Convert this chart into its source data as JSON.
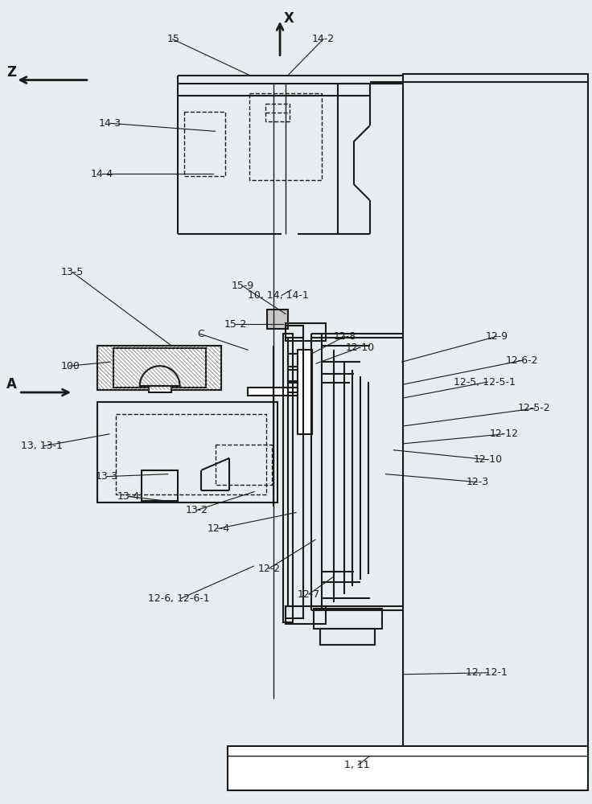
{
  "bg_color": "#e8eef0",
  "line_color": "#1a1a1a",
  "annotations": [
    [
      "15",
      207,
      47,
      310,
      92
    ],
    [
      "14-2",
      388,
      47,
      358,
      92
    ],
    [
      "14-3",
      122,
      152,
      267,
      162
    ],
    [
      "14-4",
      112,
      215,
      265,
      215
    ],
    [
      "13-5",
      75,
      338,
      213,
      430
    ],
    [
      "100",
      75,
      455,
      136,
      450
    ],
    [
      "C",
      245,
      415,
      308,
      435
    ],
    [
      "10, 14, 14-1",
      308,
      367,
      362,
      360
    ],
    [
      "15-9",
      287,
      355,
      355,
      390
    ],
    [
      "15-2",
      278,
      403,
      352,
      403
    ],
    [
      "12-8",
      415,
      418,
      387,
      440
    ],
    [
      "12-10",
      430,
      432,
      393,
      452
    ],
    [
      "12-9",
      605,
      418,
      500,
      450
    ],
    [
      "12-6-2",
      630,
      448,
      502,
      478
    ],
    [
      "12-5, 12-5-1",
      565,
      475,
      502,
      495
    ],
    [
      "12-5-2",
      645,
      508,
      502,
      530
    ],
    [
      "12-12",
      610,
      540,
      502,
      552
    ],
    [
      "12-10",
      590,
      572,
      490,
      560
    ],
    [
      "12-3",
      580,
      600,
      480,
      590
    ],
    [
      "13, 13-1",
      25,
      555,
      135,
      540
    ],
    [
      "13-3",
      118,
      593,
      208,
      590
    ],
    [
      "13-4",
      145,
      618,
      218,
      625
    ],
    [
      "13-2",
      230,
      635,
      316,
      612
    ],
    [
      "12-4",
      257,
      658,
      368,
      638
    ],
    [
      "12-6, 12-6-1",
      183,
      745,
      315,
      705
    ],
    [
      "12-2",
      320,
      708,
      392,
      672
    ],
    [
      "12-7",
      370,
      740,
      415,
      718
    ],
    [
      "12, 12-1",
      580,
      838,
      503,
      840
    ],
    [
      "1, 11",
      428,
      953,
      460,
      942
    ]
  ]
}
